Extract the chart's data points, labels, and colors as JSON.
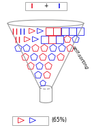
{
  "red": "#e8192c",
  "blue": "#2020e8",
  "gray": "#999999",
  "bg": "#ffffff",
  "self_sorting_text": "self-sorting",
  "percent_text": "(65%)"
}
